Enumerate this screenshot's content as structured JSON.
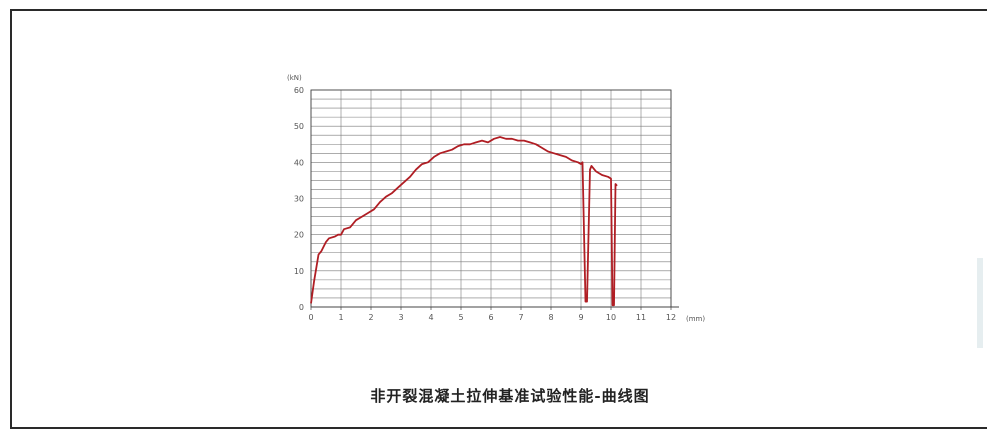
{
  "chart_data": {
    "type": "line",
    "title": "非开裂混凝土拉伸基准试验性能-曲线图",
    "xlabel": "(mm)",
    "ylabel": "(kN)",
    "xlim": [
      0,
      12
    ],
    "ylim": [
      0,
      60
    ],
    "x_ticks": [
      "0",
      "1",
      "2",
      "3",
      "4",
      "5",
      "6",
      "7",
      "8",
      "9",
      "10",
      "11",
      "12"
    ],
    "y_ticks": [
      "0",
      "10",
      "20",
      "30",
      "40",
      "50",
      "60"
    ],
    "grid": true,
    "line_color": "#b01e24",
    "series": [
      {
        "points": [
          [
            0.0,
            1.0
          ],
          [
            0.1,
            7.0
          ],
          [
            0.25,
            14.5
          ],
          [
            0.35,
            15.5
          ],
          [
            0.5,
            18.0
          ],
          [
            0.6,
            19.0
          ],
          [
            0.8,
            19.5
          ],
          [
            0.9,
            20.0
          ],
          [
            1.0,
            20.0
          ],
          [
            1.1,
            21.5
          ],
          [
            1.3,
            22.0
          ],
          [
            1.5,
            24.0
          ],
          [
            1.7,
            25.0
          ],
          [
            1.9,
            26.0
          ],
          [
            2.1,
            27.0
          ],
          [
            2.3,
            29.0
          ],
          [
            2.5,
            30.5
          ],
          [
            2.7,
            31.5
          ],
          [
            2.9,
            33.0
          ],
          [
            3.1,
            34.5
          ],
          [
            3.3,
            36.0
          ],
          [
            3.5,
            38.0
          ],
          [
            3.7,
            39.5
          ],
          [
            3.9,
            40.0
          ],
          [
            4.1,
            41.5
          ],
          [
            4.3,
            42.5
          ],
          [
            4.5,
            43.0
          ],
          [
            4.7,
            43.5
          ],
          [
            4.9,
            44.5
          ],
          [
            5.1,
            45.0
          ],
          [
            5.3,
            45.0
          ],
          [
            5.5,
            45.5
          ],
          [
            5.7,
            46.0
          ],
          [
            5.9,
            45.5
          ],
          [
            6.1,
            46.5
          ],
          [
            6.3,
            47.0
          ],
          [
            6.5,
            46.5
          ],
          [
            6.7,
            46.5
          ],
          [
            6.9,
            46.0
          ],
          [
            7.1,
            46.0
          ],
          [
            7.3,
            45.5
          ],
          [
            7.5,
            45.0
          ],
          [
            7.7,
            44.0
          ],
          [
            7.9,
            43.0
          ],
          [
            8.1,
            42.5
          ],
          [
            8.3,
            42.0
          ],
          [
            8.5,
            41.5
          ],
          [
            8.7,
            40.5
          ],
          [
            8.9,
            40.0
          ],
          [
            9.0,
            39.5
          ],
          [
            9.05,
            40.0
          ],
          [
            9.15,
            1.5
          ],
          [
            9.2,
            1.5
          ],
          [
            9.3,
            38.0
          ],
          [
            9.35,
            39.0
          ],
          [
            9.5,
            37.5
          ],
          [
            9.7,
            36.5
          ],
          [
            9.9,
            36.0
          ],
          [
            10.0,
            35.5
          ],
          [
            10.05,
            0.5
          ],
          [
            10.1,
            0.5
          ],
          [
            10.15,
            34.0
          ],
          [
            10.2,
            33.5
          ]
        ]
      }
    ]
  },
  "page": {
    "caption": "非开裂混凝土拉伸基准试验性能-曲线图"
  }
}
